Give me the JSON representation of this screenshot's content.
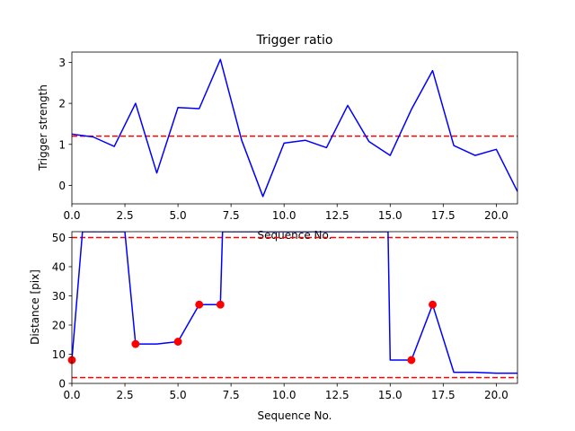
{
  "chart_data": [
    {
      "type": "line",
      "title": "Trigger ratio",
      "xlabel": "Sequence No.",
      "ylabel": "Trigger strength",
      "xlim": [
        0,
        21
      ],
      "ylim": [
        -0.45,
        3.25
      ],
      "xticks": [
        "0.0",
        "2.5",
        "5.0",
        "7.5",
        "10.0",
        "12.5",
        "15.0",
        "17.5",
        "20.0"
      ],
      "yticks": [
        "0",
        "1",
        "2",
        "3"
      ],
      "grid": false,
      "series": [
        {
          "color": "#0000ff",
          "x": [
            0,
            1,
            2,
            3,
            4,
            5,
            6,
            7,
            8,
            9,
            10,
            11,
            12,
            13,
            14,
            15,
            16,
            17,
            18,
            19,
            20,
            21
          ],
          "y": [
            1.25,
            1.18,
            0.95,
            2.0,
            0.3,
            1.9,
            1.87,
            3.07,
            1.1,
            -0.27,
            1.03,
            1.1,
            0.92,
            1.95,
            1.07,
            0.73,
            1.85,
            2.8,
            0.97,
            0.73,
            0.88,
            -0.15
          ]
        }
      ],
      "hlines": [
        {
          "y": 1.2,
          "color": "#ff0000",
          "style": "dashed"
        }
      ]
    },
    {
      "type": "line",
      "title": "",
      "xlabel": "Sequence No.",
      "ylabel": "Distance [pix]",
      "xlim": [
        0,
        21
      ],
      "ylim": [
        0,
        52
      ],
      "xticks": [
        "0.0",
        "2.5",
        "5.0",
        "7.5",
        "10.0",
        "12.5",
        "15.0",
        "17.5",
        "20.0"
      ],
      "yticks": [
        "0",
        "10",
        "20",
        "30",
        "40",
        "50"
      ],
      "grid": false,
      "series": [
        {
          "color": "#0000ff",
          "x": [
            0,
            0.5,
            2.5,
            3,
            4,
            5,
            6,
            7,
            7.1,
            14.9,
            15,
            16,
            17,
            18,
            19,
            20,
            21
          ],
          "y": [
            8,
            52,
            52,
            13.5,
            13.5,
            14.3,
            27,
            27,
            52,
            52,
            8,
            8,
            27,
            3.8,
            3.8,
            3.5,
            3.5
          ]
        }
      ],
      "markers": {
        "color": "#ff0000",
        "x": [
          0,
          3,
          5,
          6,
          7,
          16,
          17
        ],
        "y": [
          8,
          13.5,
          14.3,
          27,
          27,
          8,
          27
        ]
      },
      "hlines": [
        {
          "y": 50,
          "color": "#ff0000",
          "style": "dashed"
        },
        {
          "y": 2,
          "color": "#ff0000",
          "style": "dashed"
        }
      ]
    }
  ]
}
